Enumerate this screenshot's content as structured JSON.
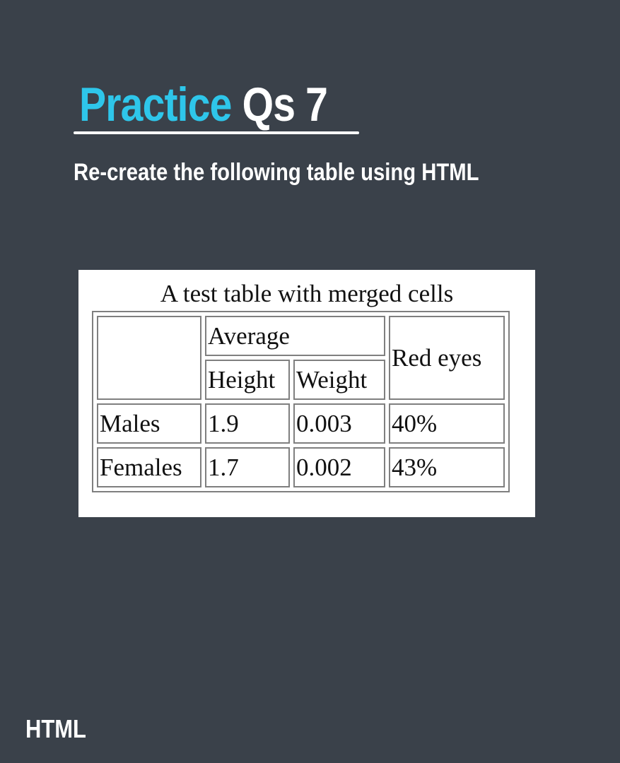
{
  "slide": {
    "title_accent": "Practice",
    "title_rest": "Qs 7",
    "subtitle": "Re-create the following table using HTML",
    "footer": "HTML",
    "accent_color": "#2ec6ea",
    "background_color": "#3a414a"
  },
  "table": {
    "caption": "A test table with merged cells",
    "headers": {
      "group": "Average",
      "height": "Height",
      "weight": "Weight",
      "red_eyes": "Red eyes"
    },
    "rows": [
      {
        "label": "Males",
        "height": "1.9",
        "weight": "0.003",
        "red_eyes": "40%"
      },
      {
        "label": "Females",
        "height": "1.7",
        "weight": "0.002",
        "red_eyes": "43%"
      }
    ]
  }
}
